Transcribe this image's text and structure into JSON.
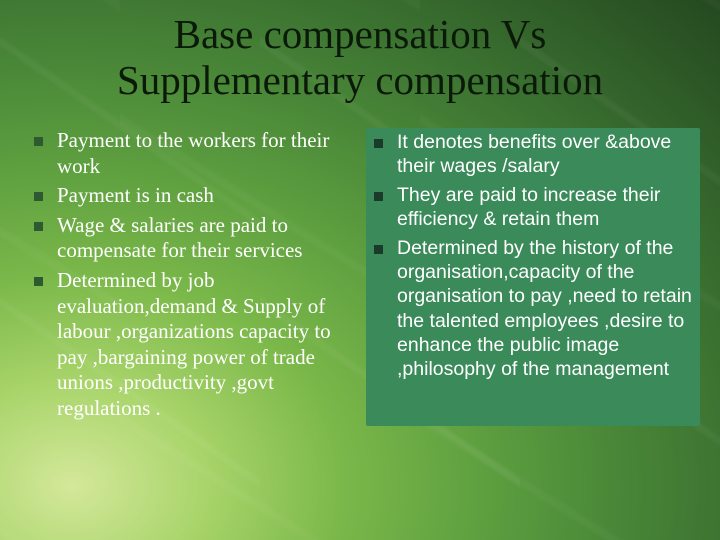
{
  "title_line1": "Base compensation Vs",
  "title_line2": "Supplementary compensation",
  "colors": {
    "title_text": "#0b1a08",
    "body_text": "#ffffff",
    "left_bullet": "#2d5a30",
    "right_bullet": "#1a3a2a",
    "right_panel_bg": "#3a8a5a",
    "bg_gradient_inner": "#d4e89a",
    "bg_gradient_outer": "#244820"
  },
  "typography": {
    "title_family": "Times New Roman",
    "title_size_pt": 31,
    "left_family": "Times New Roman",
    "left_size_pt": 16,
    "right_family": "Arial",
    "right_size_pt": 15
  },
  "left": {
    "items": [
      {
        "text": "Payment to the workers for their work"
      },
      {
        "text": "Payment is in cash"
      },
      {
        "text": "Wage & salaries are paid to compensate for their services"
      },
      {
        "text": "Determined by job evaluation,demand & Supply of labour ,organizations capacity to pay ,bargaining power of trade unions ,productivity ,govt regulations ."
      }
    ]
  },
  "right": {
    "items": [
      {
        "text": "It denotes benefits over &above their wages /salary"
      },
      {
        "text": "They are paid to increase their efficiency & retain them"
      },
      {
        "text": "Determined by the history of the organisation,capacity of the organisation to pay ,need to retain the talented employees ,desire to enhance the public image ,philosophy of the management"
      }
    ]
  }
}
